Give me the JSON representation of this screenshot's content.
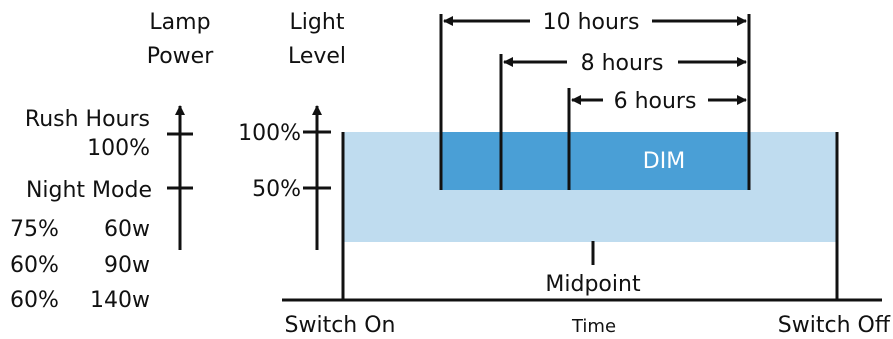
{
  "lamp_axis": {
    "title_line1": "Lamp",
    "title_line2": "Power",
    "rush_hours_label": "Rush Hours",
    "rush_hours_value": "100%",
    "night_mode_label": "Night Mode",
    "night_mode_rows": [
      {
        "percent": "75%",
        "watts": "60w"
      },
      {
        "percent": "60%",
        "watts": "90w"
      },
      {
        "percent": "60%",
        "watts": "140w"
      }
    ]
  },
  "light_axis": {
    "title_line1": "Light",
    "title_line2": "Level",
    "tick_high": "100%",
    "tick_mid": "50%"
  },
  "time_axis": {
    "start_label": "Switch On",
    "center_label": "Time",
    "end_label": "Switch Off"
  },
  "dim_box": {
    "label": "DIM"
  },
  "midpoint_label": "Midpoint",
  "durations": [
    {
      "label": "10 hours"
    },
    {
      "label": "8 hours"
    },
    {
      "label": "6 hours"
    }
  ],
  "colors": {
    "full_band": "#bfdcef",
    "dim_band": "#4a9fd6",
    "line": "#111111",
    "dim_text": "#ffffff"
  }
}
